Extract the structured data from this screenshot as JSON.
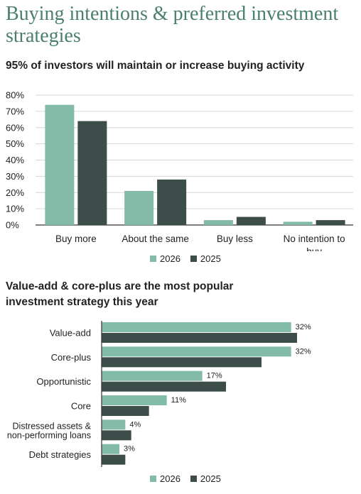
{
  "title": "Buying intentions & preferred investment strategies",
  "colors": {
    "2026": "#82bba8",
    "2025": "#3d4d4a",
    "grid": "#d6d6d6",
    "axis": "#333333"
  },
  "charts": [
    {
      "subtitle": "95% of investors will maintain or increase buying activity",
      "legend": [
        "2026",
        "2025"
      ]
    },
    {
      "subtitle": "Value-add & core-plus are the most popular investment strategy this year",
      "legend": [
        "2026",
        "2025"
      ]
    }
  ],
  "chart_data": [
    {
      "type": "bar",
      "orientation": "vertical",
      "title": "95% of investors will maintain or increase buying activity",
      "categories": [
        "Buy more",
        "About the same",
        "Buy less",
        "No intention to buy"
      ],
      "series": [
        {
          "name": "2026",
          "values": [
            74,
            21,
            3,
            2
          ]
        },
        {
          "name": "2025",
          "values": [
            64,
            28,
            5,
            3
          ]
        }
      ],
      "ylim": [
        0,
        80
      ],
      "yticks": [
        "0%",
        "10%",
        "20%",
        "30%",
        "40%",
        "50%",
        "60%",
        "70%",
        "80%"
      ],
      "grid": true,
      "legend_position": "bottom"
    },
    {
      "type": "bar",
      "orientation": "horizontal",
      "title": "Value-add & core-plus are the most popular investment strategy this year",
      "categories": [
        "Value-add",
        "Core-plus",
        "Opportunistic",
        "Core",
        "Distressed assets & non-performing loans",
        "Debt strategies"
      ],
      "series": [
        {
          "name": "2026",
          "values": [
            32,
            32,
            17,
            11,
            4,
            3
          ],
          "labels": [
            "32%",
            "32%",
            "17%",
            "11%",
            "4%",
            "3%"
          ]
        },
        {
          "name": "2025",
          "values": [
            33,
            27,
            21,
            8,
            5,
            4
          ]
        }
      ],
      "xlim": [
        0,
        36
      ],
      "grid": false,
      "legend_position": "bottom"
    }
  ]
}
